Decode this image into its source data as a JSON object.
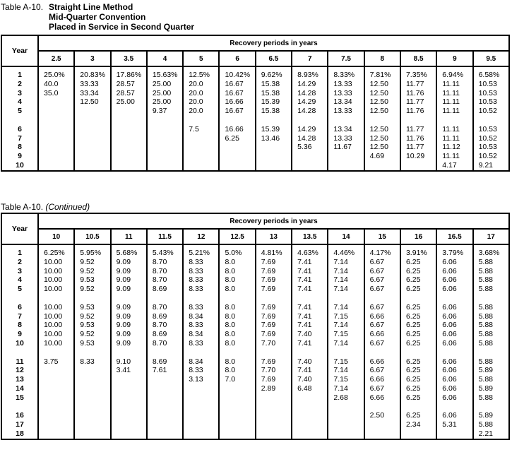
{
  "table1": {
    "label": "Table A-10.",
    "title_lines": [
      "Straight Line Method",
      "Mid-Quarter Convention",
      "Placed in Service in Second Quarter"
    ],
    "year_header": "Year",
    "group_header": "Recovery periods in years",
    "years": [
      "1",
      "2",
      "3",
      "4",
      "5",
      "6",
      "7",
      "8",
      "9",
      "10"
    ],
    "breaks_after": [
      "5"
    ],
    "columns": [
      {
        "period": "2.5",
        "values": [
          "25.0%",
          "40.0",
          "35.0"
        ]
      },
      {
        "period": "3",
        "values": [
          "20.83%",
          "33.33",
          "33.34",
          "12.50"
        ]
      },
      {
        "period": "3.5",
        "values": [
          "17.86%",
          "28.57",
          "28.57",
          "25.00"
        ]
      },
      {
        "period": "4",
        "values": [
          "15.63%",
          "25.00",
          "25.00",
          "25.00",
          "9.37"
        ]
      },
      {
        "period": "5",
        "values": [
          "12.5%",
          "20.0",
          "20.0",
          "20.0",
          "20.0",
          "7.5"
        ]
      },
      {
        "period": "6",
        "values": [
          "10.42%",
          "16.67",
          "16.67",
          "16.66",
          "16.67",
          "16.66",
          "6.25"
        ]
      },
      {
        "period": "6.5",
        "values": [
          "9.62%",
          "15.38",
          "15.38",
          "15.39",
          "15.38",
          "15.39",
          "13.46"
        ]
      },
      {
        "period": "7",
        "values": [
          "8.93%",
          "14.29",
          "14.28",
          "14.29",
          "14.28",
          "14.29",
          "14.28",
          "5.36"
        ]
      },
      {
        "period": "7.5",
        "values": [
          "8.33%",
          "13.33",
          "13.33",
          "13.34",
          "13.33",
          "13.34",
          "13.33",
          "11.67"
        ]
      },
      {
        "period": "8",
        "values": [
          "7.81%",
          "12.50",
          "12.50",
          "12.50",
          "12.50",
          "12.50",
          "12.50",
          "12.50",
          "4.69"
        ]
      },
      {
        "period": "8.5",
        "values": [
          "7.35%",
          "11.77",
          "11.76",
          "11.77",
          "11.76",
          "11.77",
          "11.76",
          "11.77",
          "10.29"
        ]
      },
      {
        "period": "9",
        "values": [
          "6.94%",
          "11.11",
          "11.11",
          "11.11",
          "11.11",
          "11.11",
          "11.11",
          "11.12",
          "11.11",
          "4.17"
        ]
      },
      {
        "period": "9.5",
        "values": [
          "6.58%",
          "10.53",
          "10.53",
          "10.53",
          "10.52",
          "10.53",
          "10.52",
          "10.53",
          "10.52",
          "9.21"
        ]
      }
    ]
  },
  "table2": {
    "label": "Table A-10.",
    "continued": "(Continued)",
    "year_header": "Year",
    "group_header": "Recovery periods in years",
    "years": [
      "1",
      "2",
      "3",
      "4",
      "5",
      "6",
      "7",
      "8",
      "9",
      "10",
      "11",
      "12",
      "13",
      "14",
      "15",
      "16",
      "17",
      "18"
    ],
    "breaks_after": [
      "5",
      "10",
      "15"
    ],
    "columns": [
      {
        "period": "10",
        "values": [
          "6.25%",
          "10.00",
          "10.00",
          "10.00",
          "10.00",
          "10.00",
          "10.00",
          "10.00",
          "10.00",
          "10.00",
          "3.75"
        ]
      },
      {
        "period": "10.5",
        "values": [
          "5.95%",
          "9.52",
          "9.52",
          "9.53",
          "9.52",
          "9.53",
          "9.52",
          "9.53",
          "9.52",
          "9.53",
          "8.33"
        ]
      },
      {
        "period": "11",
        "values": [
          "5.68%",
          "9.09",
          "9.09",
          "9.09",
          "9.09",
          "9.09",
          "9.09",
          "9.09",
          "9.09",
          "9.09",
          "9.10",
          "3.41"
        ]
      },
      {
        "period": "11.5",
        "values": [
          "5.43%",
          "8.70",
          "8.70",
          "8.70",
          "8.69",
          "8.70",
          "8.69",
          "8.70",
          "8.69",
          "8.70",
          "8.69",
          "7.61"
        ]
      },
      {
        "period": "12",
        "values": [
          "5.21%",
          "8.33",
          "8.33",
          "8.33",
          "8.33",
          "8.33",
          "8.34",
          "8.33",
          "8.34",
          "8.33",
          "8.34",
          "8.33",
          "3.13"
        ]
      },
      {
        "period": "12.5",
        "values": [
          "5.0%",
          "8.0",
          "8.0",
          "8.0",
          "8.0",
          "8.0",
          "8.0",
          "8.0",
          "8.0",
          "8.0",
          "8.0",
          "8.0",
          "7.0"
        ]
      },
      {
        "period": "13",
        "values": [
          "4.81%",
          "7.69",
          "7.69",
          "7.69",
          "7.69",
          "7.69",
          "7.69",
          "7.69",
          "7.69",
          "7.70",
          "7.69",
          "7.70",
          "7.69",
          "2.89"
        ]
      },
      {
        "period": "13.5",
        "values": [
          "4.63%",
          "7.41",
          "7.41",
          "7.41",
          "7.41",
          "7.41",
          "7.41",
          "7.41",
          "7.40",
          "7.41",
          "7.40",
          "7.41",
          "7.40",
          "6.48"
        ]
      },
      {
        "period": "14",
        "values": [
          "4.46%",
          "7.14",
          "7.14",
          "7.14",
          "7.14",
          "7.14",
          "7.15",
          "7.14",
          "7.15",
          "7.14",
          "7.15",
          "7.14",
          "7.15",
          "7.14",
          "2.68"
        ]
      },
      {
        "period": "15",
        "values": [
          "4.17%",
          "6.67",
          "6.67",
          "6.67",
          "6.67",
          "6.67",
          "6.66",
          "6.67",
          "6.66",
          "6.67",
          "6.66",
          "6.67",
          "6.66",
          "6.67",
          "6.66",
          "2.50"
        ]
      },
      {
        "period": "16",
        "values": [
          "3.91%",
          "6.25",
          "6.25",
          "6.25",
          "6.25",
          "6.25",
          "6.25",
          "6.25",
          "6.25",
          "6.25",
          "6.25",
          "6.25",
          "6.25",
          "6.25",
          "6.25",
          "6.25",
          "2.34"
        ]
      },
      {
        "period": "16.5",
        "values": [
          "3.79%",
          "6.06",
          "6.06",
          "6.06",
          "6.06",
          "6.06",
          "6.06",
          "6.06",
          "6.06",
          "6.06",
          "6.06",
          "6.06",
          "6.06",
          "6.06",
          "6.06",
          "6.06",
          "5.31"
        ]
      },
      {
        "period": "17",
        "values": [
          "3.68%",
          "5.88",
          "5.88",
          "5.88",
          "5.88",
          "5.88",
          "5.88",
          "5.88",
          "5.88",
          "5.88",
          "5.88",
          "5.89",
          "5.88",
          "5.89",
          "5.88",
          "5.89",
          "5.88",
          "2.21"
        ]
      }
    ]
  }
}
